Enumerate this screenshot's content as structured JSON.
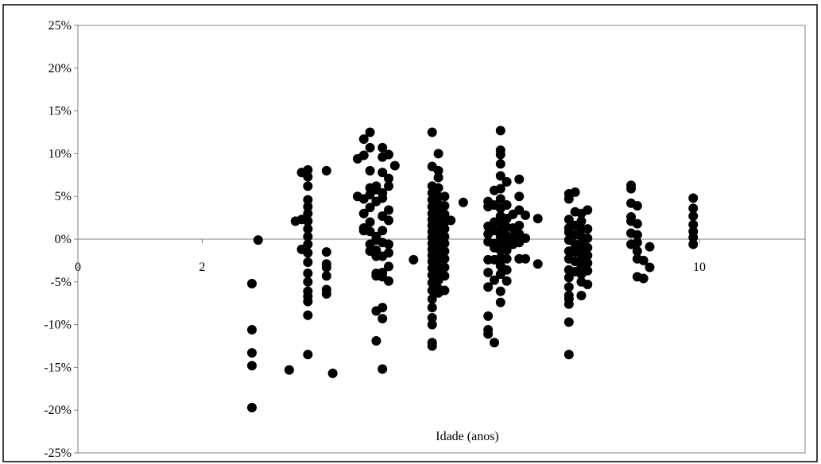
{
  "chart_data": {
    "type": "scatter",
    "title": "",
    "xlabel": "Idade (anos)",
    "ylabel": "",
    "xlim": [
      0,
      11.7
    ],
    "ylim": [
      -25,
      25
    ],
    "x_ticks": [
      {
        "value": 0,
        "label": "0"
      },
      {
        "value": 2,
        "label": "2"
      },
      {
        "value": 10,
        "label": "10"
      }
    ],
    "y_ticks": [
      {
        "value": 25,
        "label": "25%"
      },
      {
        "value": 20,
        "label": "20%"
      },
      {
        "value": 15,
        "label": "15%"
      },
      {
        "value": 10,
        "label": "10%"
      },
      {
        "value": 5,
        "label": "5%"
      },
      {
        "value": 0,
        "label": "0%"
      },
      {
        "value": -5,
        "label": "-5%"
      },
      {
        "value": -10,
        "label": "-10%"
      },
      {
        "value": -15,
        "label": "-15%"
      },
      {
        "value": -20,
        "label": "-20%"
      },
      {
        "value": -25,
        "label": "-25%"
      }
    ],
    "grid": false,
    "legend": "none",
    "marker_color": "#000000",
    "points": [
      {
        "x": 2.8,
        "y": -5.2
      },
      {
        "x": 2.8,
        "y": -10.6
      },
      {
        "x": 2.8,
        "y": -13.3
      },
      {
        "x": 2.8,
        "y": -14.8
      },
      {
        "x": 2.8,
        "y": -19.7
      },
      {
        "x": 2.9,
        "y": -0.1
      },
      {
        "x": 3.4,
        "y": -15.3
      },
      {
        "x": 3.5,
        "y": 2.1
      },
      {
        "x": 3.6,
        "y": 7.8
      },
      {
        "x": 3.6,
        "y": 2.3
      },
      {
        "x": 3.6,
        "y": -1.2
      },
      {
        "x": 3.7,
        "y": 8.1
      },
      {
        "x": 3.7,
        "y": 7.3
      },
      {
        "x": 3.7,
        "y": 6.2
      },
      {
        "x": 3.7,
        "y": 4.6
      },
      {
        "x": 3.7,
        "y": 3.8
      },
      {
        "x": 3.7,
        "y": 3.0
      },
      {
        "x": 3.7,
        "y": 2.1
      },
      {
        "x": 3.7,
        "y": 1.2
      },
      {
        "x": 3.7,
        "y": 0.3
      },
      {
        "x": 3.7,
        "y": -0.6
      },
      {
        "x": 3.7,
        "y": -1.6
      },
      {
        "x": 3.7,
        "y": -2.7
      },
      {
        "x": 3.7,
        "y": -4.0
      },
      {
        "x": 3.7,
        "y": -5.0
      },
      {
        "x": 3.7,
        "y": -6.1
      },
      {
        "x": 3.7,
        "y": -6.7
      },
      {
        "x": 3.7,
        "y": -7.3
      },
      {
        "x": 3.7,
        "y": -8.9
      },
      {
        "x": 3.7,
        "y": -13.5
      },
      {
        "x": 4.0,
        "y": 8.0
      },
      {
        "x": 4.0,
        "y": -1.5
      },
      {
        "x": 4.0,
        "y": -2.9
      },
      {
        "x": 4.0,
        "y": -3.3
      },
      {
        "x": 4.0,
        "y": -4.3
      },
      {
        "x": 4.0,
        "y": -5.9
      },
      {
        "x": 4.0,
        "y": -6.4
      },
      {
        "x": 4.1,
        "y": -15.7
      },
      {
        "x": 4.5,
        "y": 9.4
      },
      {
        "x": 4.5,
        "y": 5.0
      },
      {
        "x": 4.6,
        "y": 11.7
      },
      {
        "x": 4.6,
        "y": 9.8
      },
      {
        "x": 4.6,
        "y": 4.7
      },
      {
        "x": 4.6,
        "y": 3.0
      },
      {
        "x": 4.6,
        "y": 1.3
      },
      {
        "x": 4.6,
        "y": 1.0
      },
      {
        "x": 4.7,
        "y": 12.5
      },
      {
        "x": 4.7,
        "y": 10.7
      },
      {
        "x": 4.7,
        "y": 8.0
      },
      {
        "x": 4.7,
        "y": 6.0
      },
      {
        "x": 4.7,
        "y": 5.2
      },
      {
        "x": 4.7,
        "y": 3.7
      },
      {
        "x": 4.7,
        "y": 2.0
      },
      {
        "x": 4.7,
        "y": 0.9
      },
      {
        "x": 4.7,
        "y": -0.6
      },
      {
        "x": 4.7,
        "y": -1.4
      },
      {
        "x": 4.8,
        "y": 6.2
      },
      {
        "x": 4.8,
        "y": 5.8
      },
      {
        "x": 4.8,
        "y": 4.4
      },
      {
        "x": 4.8,
        "y": 0.3
      },
      {
        "x": 4.8,
        "y": -0.1
      },
      {
        "x": 4.8,
        "y": -1.3
      },
      {
        "x": 4.8,
        "y": -2.0
      },
      {
        "x": 4.8,
        "y": -4.0
      },
      {
        "x": 4.8,
        "y": -4.3
      },
      {
        "x": 4.8,
        "y": -8.4
      },
      {
        "x": 4.8,
        "y": -11.9
      },
      {
        "x": 4.9,
        "y": 10.7
      },
      {
        "x": 4.9,
        "y": 9.6
      },
      {
        "x": 4.9,
        "y": 7.8
      },
      {
        "x": 4.9,
        "y": 5.4
      },
      {
        "x": 4.9,
        "y": 4.8
      },
      {
        "x": 4.9,
        "y": 2.7
      },
      {
        "x": 4.9,
        "y": 1.0
      },
      {
        "x": 4.9,
        "y": -0.4
      },
      {
        "x": 4.9,
        "y": -2.0
      },
      {
        "x": 4.9,
        "y": -3.9
      },
      {
        "x": 4.9,
        "y": -4.4
      },
      {
        "x": 4.9,
        "y": -8.0
      },
      {
        "x": 4.9,
        "y": -9.3
      },
      {
        "x": 4.9,
        "y": -15.2
      },
      {
        "x": 5.0,
        "y": 9.9
      },
      {
        "x": 5.0,
        "y": 7.1
      },
      {
        "x": 5.0,
        "y": 6.2
      },
      {
        "x": 5.0,
        "y": 3.4
      },
      {
        "x": 5.0,
        "y": 2.2
      },
      {
        "x": 5.0,
        "y": -0.6
      },
      {
        "x": 5.0,
        "y": -1.6
      },
      {
        "x": 5.0,
        "y": -3.2
      },
      {
        "x": 5.0,
        "y": -4.9
      },
      {
        "x": 5.1,
        "y": 8.6
      },
      {
        "x": 5.4,
        "y": -2.4
      },
      {
        "x": 5.7,
        "y": 12.5
      },
      {
        "x": 5.7,
        "y": 8.5
      },
      {
        "x": 5.7,
        "y": 6.2
      },
      {
        "x": 5.7,
        "y": 5.4
      },
      {
        "x": 5.7,
        "y": 4.6
      },
      {
        "x": 5.7,
        "y": 3.8
      },
      {
        "x": 5.7,
        "y": 3.0
      },
      {
        "x": 5.7,
        "y": 2.3
      },
      {
        "x": 5.7,
        "y": 1.6
      },
      {
        "x": 5.7,
        "y": 0.9
      },
      {
        "x": 5.7,
        "y": 0.2
      },
      {
        "x": 5.7,
        "y": -0.5
      },
      {
        "x": 5.7,
        "y": -1.2
      },
      {
        "x": 5.7,
        "y": -1.9
      },
      {
        "x": 5.7,
        "y": -2.6
      },
      {
        "x": 5.7,
        "y": -3.4
      },
      {
        "x": 5.7,
        "y": -4.2
      },
      {
        "x": 5.7,
        "y": -5.1
      },
      {
        "x": 5.7,
        "y": -6.0
      },
      {
        "x": 5.7,
        "y": -7.0
      },
      {
        "x": 5.7,
        "y": -8.0
      },
      {
        "x": 5.7,
        "y": -9.2
      },
      {
        "x": 5.7,
        "y": -10.0
      },
      {
        "x": 5.7,
        "y": -12.1
      },
      {
        "x": 5.7,
        "y": -12.5
      },
      {
        "x": 5.8,
        "y": 10.0
      },
      {
        "x": 5.8,
        "y": 8.0
      },
      {
        "x": 5.8,
        "y": 7.2
      },
      {
        "x": 5.8,
        "y": 6.0
      },
      {
        "x": 5.8,
        "y": 5.0
      },
      {
        "x": 5.8,
        "y": 4.1
      },
      {
        "x": 5.8,
        "y": 3.3
      },
      {
        "x": 5.8,
        "y": 2.5
      },
      {
        "x": 5.8,
        "y": 1.8
      },
      {
        "x": 5.8,
        "y": 1.1
      },
      {
        "x": 5.8,
        "y": 0.4
      },
      {
        "x": 5.8,
        "y": -0.3
      },
      {
        "x": 5.8,
        "y": -1.0
      },
      {
        "x": 5.8,
        "y": -1.7
      },
      {
        "x": 5.8,
        "y": -2.4
      },
      {
        "x": 5.8,
        "y": -3.2
      },
      {
        "x": 5.8,
        "y": -4.0
      },
      {
        "x": 5.8,
        "y": -4.8
      },
      {
        "x": 5.8,
        "y": -5.8
      },
      {
        "x": 5.8,
        "y": -6.3
      },
      {
        "x": 5.9,
        "y": 5.0
      },
      {
        "x": 5.9,
        "y": 3.9
      },
      {
        "x": 5.9,
        "y": 2.9
      },
      {
        "x": 5.9,
        "y": 2.0
      },
      {
        "x": 5.9,
        "y": 1.2
      },
      {
        "x": 5.9,
        "y": 0.3
      },
      {
        "x": 5.9,
        "y": -0.5
      },
      {
        "x": 5.9,
        "y": -1.4
      },
      {
        "x": 5.9,
        "y": -2.3
      },
      {
        "x": 5.9,
        "y": -3.3
      },
      {
        "x": 5.9,
        "y": -4.3
      },
      {
        "x": 5.9,
        "y": -6.0
      },
      {
        "x": 6.0,
        "y": 2.2
      },
      {
        "x": 6.2,
        "y": 4.3
      },
      {
        "x": 6.6,
        "y": 4.4
      },
      {
        "x": 6.6,
        "y": 3.8
      },
      {
        "x": 6.6,
        "y": 1.5
      },
      {
        "x": 6.6,
        "y": 0.6
      },
      {
        "x": 6.6,
        "y": -0.3
      },
      {
        "x": 6.6,
        "y": -2.4
      },
      {
        "x": 6.6,
        "y": -3.9
      },
      {
        "x": 6.6,
        "y": -5.6
      },
      {
        "x": 6.6,
        "y": -9.0
      },
      {
        "x": 6.6,
        "y": -10.6
      },
      {
        "x": 6.6,
        "y": -11.1
      },
      {
        "x": 6.7,
        "y": 5.7
      },
      {
        "x": 6.7,
        "y": 4.0
      },
      {
        "x": 6.7,
        "y": 2.0
      },
      {
        "x": 6.7,
        "y": 1.0
      },
      {
        "x": 6.7,
        "y": -0.5
      },
      {
        "x": 6.7,
        "y": -1.0
      },
      {
        "x": 6.7,
        "y": -2.4
      },
      {
        "x": 6.7,
        "y": -4.8
      },
      {
        "x": 6.7,
        "y": -12.1
      },
      {
        "x": 6.8,
        "y": 12.7
      },
      {
        "x": 6.8,
        "y": 10.4
      },
      {
        "x": 6.8,
        "y": 9.9
      },
      {
        "x": 6.8,
        "y": 8.8
      },
      {
        "x": 6.8,
        "y": 7.4
      },
      {
        "x": 6.8,
        "y": 5.9
      },
      {
        "x": 6.8,
        "y": 4.7
      },
      {
        "x": 6.8,
        "y": 3.6
      },
      {
        "x": 6.8,
        "y": 2.7
      },
      {
        "x": 6.8,
        "y": 1.9
      },
      {
        "x": 6.8,
        "y": 1.1
      },
      {
        "x": 6.8,
        "y": 0.3
      },
      {
        "x": 6.8,
        "y": -0.5
      },
      {
        "x": 6.8,
        "y": -1.3
      },
      {
        "x": 6.8,
        "y": -2.2
      },
      {
        "x": 6.8,
        "y": -3.1
      },
      {
        "x": 6.8,
        "y": -4.1
      },
      {
        "x": 6.8,
        "y": -6.1
      },
      {
        "x": 6.8,
        "y": -7.4
      },
      {
        "x": 6.9,
        "y": 6.7
      },
      {
        "x": 6.9,
        "y": 4.0
      },
      {
        "x": 6.9,
        "y": 2.4
      },
      {
        "x": 6.9,
        "y": 1.4
      },
      {
        "x": 6.9,
        "y": 0.4
      },
      {
        "x": 6.9,
        "y": -0.4
      },
      {
        "x": 6.9,
        "y": -1.3
      },
      {
        "x": 6.9,
        "y": -2.3
      },
      {
        "x": 6.9,
        "y": -3.6
      },
      {
        "x": 6.9,
        "y": -4.9
      },
      {
        "x": 7.0,
        "y": 2.9
      },
      {
        "x": 7.0,
        "y": 1.3
      },
      {
        "x": 7.0,
        "y": 0.3
      },
      {
        "x": 7.0,
        "y": -0.6
      },
      {
        "x": 7.1,
        "y": 7.0
      },
      {
        "x": 7.1,
        "y": 5.0
      },
      {
        "x": 7.1,
        "y": 3.4
      },
      {
        "x": 7.1,
        "y": 1.6
      },
      {
        "x": 7.1,
        "y": 0.6
      },
      {
        "x": 7.1,
        "y": -0.4
      },
      {
        "x": 7.1,
        "y": -2.3
      },
      {
        "x": 7.2,
        "y": 2.8
      },
      {
        "x": 7.2,
        "y": 0.1
      },
      {
        "x": 7.2,
        "y": -2.3
      },
      {
        "x": 7.4,
        "y": 2.4
      },
      {
        "x": 7.4,
        "y": -2.9
      },
      {
        "x": 7.9,
        "y": 5.3
      },
      {
        "x": 7.9,
        "y": 4.7
      },
      {
        "x": 7.9,
        "y": 2.3
      },
      {
        "x": 7.9,
        "y": 1.3
      },
      {
        "x": 7.9,
        "y": 0.8
      },
      {
        "x": 7.9,
        "y": -0.1
      },
      {
        "x": 7.9,
        "y": -1.4
      },
      {
        "x": 7.9,
        "y": -2.3
      },
      {
        "x": 7.9,
        "y": -3.6
      },
      {
        "x": 7.9,
        "y": -4.5
      },
      {
        "x": 7.9,
        "y": -5.6
      },
      {
        "x": 7.9,
        "y": -6.6
      },
      {
        "x": 7.9,
        "y": -7.0
      },
      {
        "x": 7.9,
        "y": -7.6
      },
      {
        "x": 7.9,
        "y": -9.7
      },
      {
        "x": 7.9,
        "y": -13.5
      },
      {
        "x": 8.0,
        "y": 5.5
      },
      {
        "x": 8.0,
        "y": 3.2
      },
      {
        "x": 8.0,
        "y": 1.6
      },
      {
        "x": 8.0,
        "y": 0.5
      },
      {
        "x": 8.0,
        "y": -0.6
      },
      {
        "x": 8.0,
        "y": -1.5
      },
      {
        "x": 8.0,
        "y": -2.6
      },
      {
        "x": 8.0,
        "y": -3.8
      },
      {
        "x": 8.1,
        "y": 3.0
      },
      {
        "x": 8.1,
        "y": 2.1
      },
      {
        "x": 8.1,
        "y": 1.2
      },
      {
        "x": 8.1,
        "y": 0.3
      },
      {
        "x": 8.1,
        "y": -0.5
      },
      {
        "x": 8.1,
        "y": -1.4
      },
      {
        "x": 8.1,
        "y": -2.3
      },
      {
        "x": 8.1,
        "y": -3.2
      },
      {
        "x": 8.1,
        "y": -4.1
      },
      {
        "x": 8.1,
        "y": -5.0
      },
      {
        "x": 8.1,
        "y": -6.6
      },
      {
        "x": 8.2,
        "y": 3.4
      },
      {
        "x": 8.2,
        "y": 1.2
      },
      {
        "x": 8.2,
        "y": 0.1
      },
      {
        "x": 8.2,
        "y": -1.0
      },
      {
        "x": 8.2,
        "y": -1.9
      },
      {
        "x": 8.2,
        "y": -2.8
      },
      {
        "x": 8.2,
        "y": -3.7
      },
      {
        "x": 8.2,
        "y": -5.3
      },
      {
        "x": 8.9,
        "y": 6.3
      },
      {
        "x": 8.9,
        "y": 5.9
      },
      {
        "x": 8.9,
        "y": 4.2
      },
      {
        "x": 8.9,
        "y": 2.6
      },
      {
        "x": 8.9,
        "y": 2.1
      },
      {
        "x": 8.9,
        "y": 0.7
      },
      {
        "x": 8.9,
        "y": -0.6
      },
      {
        "x": 9.0,
        "y": 3.9
      },
      {
        "x": 9.0,
        "y": 1.8
      },
      {
        "x": 9.0,
        "y": 0.5
      },
      {
        "x": 9.0,
        "y": -0.4
      },
      {
        "x": 9.0,
        "y": -1.4
      },
      {
        "x": 9.0,
        "y": -2.3
      },
      {
        "x": 9.0,
        "y": -4.4
      },
      {
        "x": 9.1,
        "y": -2.5
      },
      {
        "x": 9.1,
        "y": -4.6
      },
      {
        "x": 9.2,
        "y": -0.9
      },
      {
        "x": 9.2,
        "y": -3.3
      },
      {
        "x": 9.9,
        "y": 4.8
      },
      {
        "x": 9.9,
        "y": 3.6
      },
      {
        "x": 9.9,
        "y": 2.7
      },
      {
        "x": 9.9,
        "y": 1.7
      },
      {
        "x": 9.9,
        "y": 0.9
      },
      {
        "x": 9.9,
        "y": 0.2
      },
      {
        "x": 9.9,
        "y": -0.6
      }
    ]
  }
}
